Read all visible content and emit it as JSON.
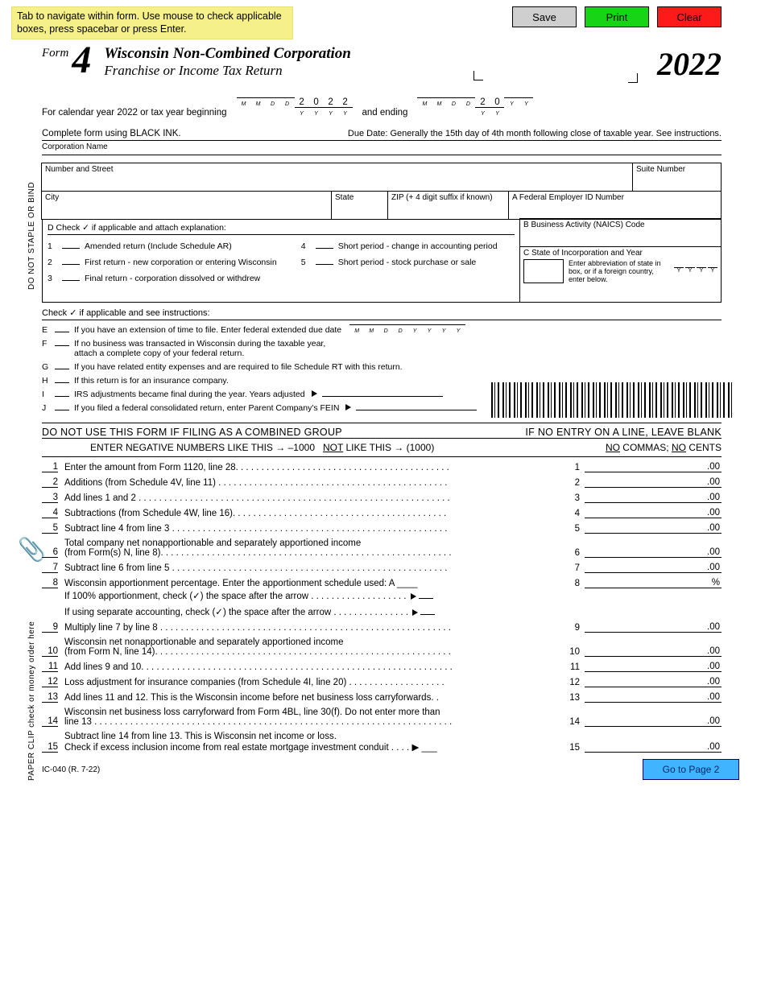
{
  "banner": {
    "tab_note": "Tab to navigate within form. Use mouse to check applicable boxes, press spacebar or press Enter.",
    "save": "Save",
    "print": "Print",
    "clear": "Clear"
  },
  "form": {
    "word": "Form",
    "number": "4",
    "title1": "Wisconsin Non-Combined Corporation",
    "title2": "Franchise or Income Tax Return",
    "year": "2022"
  },
  "date_section": {
    "cal_line": "For calendar year 2022 or tax year beginning",
    "and_ending": "and ending",
    "begin_year": [
      "2",
      "0",
      "2",
      "2"
    ],
    "end_year_prefix": [
      "2",
      "0"
    ],
    "m_label": "M",
    "d_label": "D",
    "y_label": "Y",
    "ink": "Complete form using BLACK INK.",
    "due_date": "Due Date:  Generally the 15th day of 4th month following close of taxable year. See instructions."
  },
  "labels": {
    "corp_name": "Corporation Name",
    "address": "Number and Street",
    "suite": "Suite Number",
    "city": "City",
    "state": "State",
    "zip": "ZIP (+ 4 digit suffix if known)",
    "fein": "A Federal Employer ID Number",
    "naics": "B Business Activity (NAICS) Code",
    "state_inc": "C State of Incorporation            and           Year",
    "state_inc_sub": "Enter abbreviation of state in box, or if a foreign country, enter below.",
    "dont_staple": "DO NOT STAPLE OR BIND",
    "paper_clip": "PAPER CLIP check or money order here"
  },
  "section_d": {
    "title": "D  Check ✓ if applicable and attach explanation:",
    "items": [
      "Amended return (Include Schedule AR)",
      "First return - new corporation or entering Wisconsin",
      "Final return - corporation dissolved or withdrew",
      "Short period - change in accounting period",
      "Short period - stock purchase or sale"
    ]
  },
  "efj": {
    "title": "Check ✓ if applicable and see instructions:",
    "e": "If you have an extension of time to file. Enter federal extended due date",
    "f1": "If no business was transacted in Wisconsin during the taxable year,",
    "f2": "attach a complete copy of your federal return.",
    "g": "If you have related entity expenses and are required to file Schedule RT with this return.",
    "h": "If this return is for an insurance company.",
    "i": "IRS adjustments became final during the year. Years adjusted",
    "j": "If you filed a federal consolidated return, enter Parent Company's FEIN"
  },
  "warnings": {
    "w1": "DO NOT USE THIS FORM IF FILING AS A COMBINED GROUP",
    "w2": "IF NO ENTRY ON A LINE, LEAVE BLANK",
    "neg1": "ENTER NEGATIVE NUMBERS LIKE THIS",
    "neg_ex1": "–1000",
    "neg2": "NOT",
    "neg3": "LIKE THIS",
    "neg_ex2": "(1000)",
    "nocomma": "NO COMMAS; NO CENTS"
  },
  "lines": [
    {
      "n": "1",
      "text": "Enter the amount from Form 1120, line 28. . . . . . . . . . . . . . . . . . . . . . . . . . . . . . . . . . . . . . . . . .",
      "rn": "1"
    },
    {
      "n": "2",
      "text": "Additions (from Schedule 4V, line 11) . . . . . . . . . . . . . . . . . . . . . . . . . . . . . . . . . . . . . . . . . . . . .",
      "rn": "2"
    },
    {
      "n": "3",
      "text": "Add lines 1 and 2 . . . . . . . . . . . . . . . . . . . . . . . . . . . . . . . . . . . . . . . . . . . . . . . . . . . . . . . . . . . . .",
      "rn": "3"
    },
    {
      "n": "4",
      "text": "Subtractions (from Schedule 4W, line 16). . . . . . . . . . . . . . . . . . . . . . . . . . . . . . . . . . . . . . . . . .",
      "rn": "4"
    },
    {
      "n": "5",
      "text": "Subtract line 4 from line 3 . . . . . . . . . . . . . . . . . . . . . . . . . . . . . . . . . . . . . . . . . . . . . . . . . . . . . .",
      "rn": "5"
    },
    {
      "n": "6",
      "text": "Total company net nonapportionable and separately apportioned income",
      "sub": "(from Form(s) N, line 8). . . . . . . . . . . . . . . . . . . . . . . . . . . . . . . . . . . . . . . . . . . . . . . . . . . . . . . . .",
      "rn": "6"
    },
    {
      "n": "7",
      "text": "Subtract line 6 from line 5 . . . . . . . . . . . . . . . . . . . . . . . . . . . . . . . . . . . . . . . . . . . . . . . . . . . . . .",
      "rn": "7"
    },
    {
      "n": "8",
      "text": "Wisconsin apportionment percentage. Enter the apportionment schedule used:       A ____",
      "rn": "8",
      "pct": true,
      "sub_a": "If 100% apportionment, check (✓) the space after the arrow . . . . . . . . . . . . . . . . . . .",
      "sub_b": "If using separate accounting, check (✓) the space after the arrow . . . . . . . . . . . . . . ."
    },
    {
      "n": "9",
      "text": "Multiply line 7 by line 8 . . . . . . . . . . . . . . . . . . . . . . . . . . . . . . . . . . . . . . . . . . . . . . . . . . . . . . . . .",
      "rn": "9"
    },
    {
      "n": "10",
      "text": "Wisconsin net nonapportionable and separately apportioned income",
      "sub": "(from Form N, line 14). . . . . . . . . . . . . . . . . . . . . . . . . . . . . . . . . . . . . . . . . . . . . . . . . . . . . . . . . .",
      "rn": "10"
    },
    {
      "n": "11",
      "text": "Add lines 9 and 10. . . . . . . . . . . . . . . . . . . . . . . . . . . . . . . . . . . . . . . . . . . . . . . . . . . . . . . . . . . . .",
      "rn": "11"
    },
    {
      "n": "12",
      "text": "Loss adjustment for insurance companies (from Schedule 4I, line 20) . . . . . . . . . . . . . . . . . . .",
      "rn": "12"
    },
    {
      "n": "13",
      "text": "Add lines 11 and 12. This is the Wisconsin income before net business loss carryforwards. .",
      "rn": "13"
    },
    {
      "n": "14",
      "text": "Wisconsin net business loss carryforward from Form 4BL, line 30(f). Do not enter more than",
      "sub": "line 13 . . . . . . . . . . . . . . . . . . . . . . . . . . . . . . . . . . . . . . . . . . . . . . . . . . . . . . . . . . . . . . . . . . . . . .",
      "rn": "14"
    },
    {
      "n": "15",
      "text": "Subtract line 14 from line 13. This is Wisconsin net income or loss.",
      "sub": "Check if excess inclusion income from real estate mortgage investment conduit . . . .   ▶ ___",
      "rn": "15"
    }
  ],
  "footer": {
    "ic": "IC-040 (R. 7-22)",
    "goto": "Go to Page 2"
  }
}
